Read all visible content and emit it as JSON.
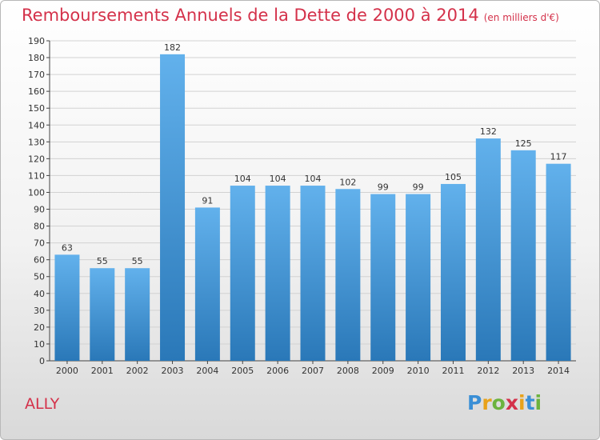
{
  "header": {
    "title": "Remboursements Annuels de la Dette de 2000 à 2014",
    "subtitle": "(en milliers d'€)"
  },
  "footer": {
    "place": "ALLY",
    "logo_letters": [
      {
        "char": "P",
        "color": "#3a8fd6"
      },
      {
        "char": "r",
        "color": "#e8a21a"
      },
      {
        "char": "o",
        "color": "#6cb33e"
      },
      {
        "char": "x",
        "color": "#d4314a"
      },
      {
        "char": "i",
        "color": "#e8a21a"
      },
      {
        "char": "t",
        "color": "#3a8fd6"
      },
      {
        "char": "i",
        "color": "#6cb33e"
      }
    ]
  },
  "chart_data": {
    "type": "bar",
    "categories": [
      "2000",
      "2001",
      "2002",
      "2003",
      "2004",
      "2005",
      "2006",
      "2007",
      "2008",
      "2009",
      "2010",
      "2011",
      "2012",
      "2013",
      "2014"
    ],
    "values": [
      63,
      55,
      55,
      182,
      91,
      104,
      104,
      104,
      102,
      99,
      99,
      105,
      132,
      125,
      117
    ],
    "ylim": [
      0,
      190
    ],
    "ytick_step": 10,
    "grid": true,
    "bar_color_top": "#62b1ec",
    "bar_color_bottom": "#2a78b8"
  }
}
